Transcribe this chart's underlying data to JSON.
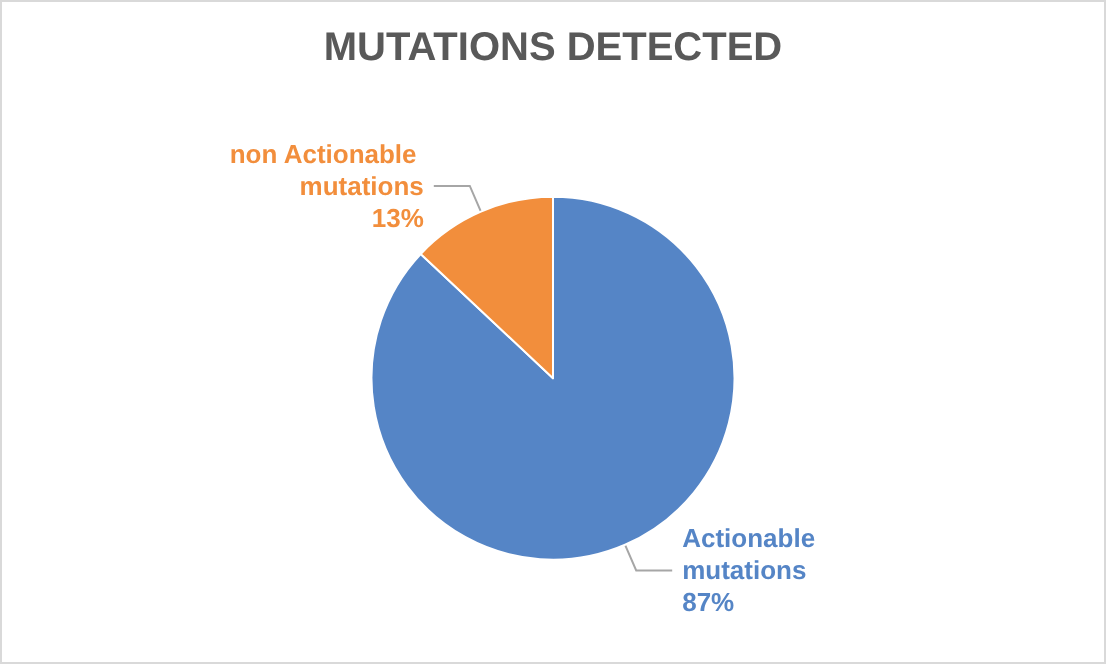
{
  "chart_data": {
    "type": "pie",
    "title": "MUTATIONS DETECTED",
    "categories": [
      "Actionable mutations",
      "non Actionable mutations"
    ],
    "values": [
      87,
      13
    ],
    "colors": [
      "#5585c6",
      "#f28e3c"
    ],
    "value_labels": [
      "87%",
      "13%"
    ],
    "legend": false
  }
}
